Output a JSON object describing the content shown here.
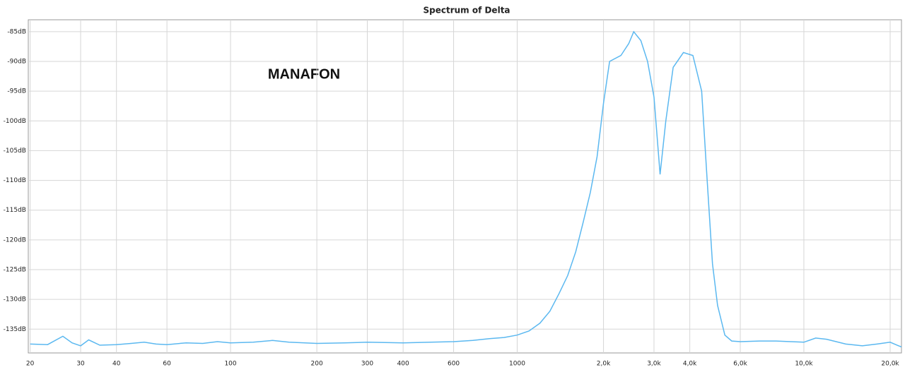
{
  "chart_data": {
    "type": "line",
    "title": "Spectrum of Delta",
    "annotation": "MANAFON",
    "log_x": true,
    "grid": true,
    "xlim": [
      19.7,
      21900
    ],
    "ylim": [
      -139,
      -83
    ],
    "xticks": [
      20,
      30,
      40,
      60,
      100,
      200,
      300,
      400,
      600,
      1000,
      {
        "value": 2000,
        "label": "2,0k"
      },
      {
        "value": 3000,
        "label": "3,0k"
      },
      {
        "value": 4000,
        "label": "4,0k"
      },
      {
        "value": 6000,
        "label": "6,0k"
      },
      {
        "value": 10000,
        "label": "10,0k"
      },
      {
        "value": 20000,
        "label": "20,0k"
      }
    ],
    "yticks": [
      {
        "value": -85,
        "label": "-85dB"
      },
      {
        "value": -90,
        "label": "-90dB"
      },
      {
        "value": -95,
        "label": "-95dB"
      },
      {
        "value": -100,
        "label": "-100dB"
      },
      {
        "value": -105,
        "label": "-105dB"
      },
      {
        "value": -110,
        "label": "-110dB"
      },
      {
        "value": -115,
        "label": "-115dB"
      },
      {
        "value": -120,
        "label": "-120dB"
      },
      {
        "value": -125,
        "label": "-125dB"
      },
      {
        "value": -130,
        "label": "-130dB"
      },
      {
        "value": -135,
        "label": "-135dB"
      }
    ],
    "x": [
      20,
      23,
      26,
      28,
      30,
      32,
      35,
      40,
      45,
      50,
      55,
      60,
      70,
      80,
      90,
      100,
      120,
      140,
      160,
      200,
      250,
      300,
      400,
      500,
      600,
      700,
      800,
      900,
      1000,
      1100,
      1200,
      1300,
      1400,
      1500,
      1600,
      1700,
      1800,
      1900,
      2000,
      2100,
      2300,
      2450,
      2550,
      2700,
      2850,
      3000,
      3150,
      3300,
      3500,
      3800,
      4100,
      4400,
      4600,
      4800,
      5000,
      5300,
      5600,
      6000,
      7000,
      8000,
      9000,
      10000,
      11000,
      12000,
      14000,
      16000,
      18000,
      20000,
      21900
    ],
    "series": [
      {
        "color": "#5bb8f0",
        "values": [
          -137.5,
          -137.6,
          -136.2,
          -137.3,
          -137.8,
          -136.8,
          -137.7,
          -137.6,
          -137.4,
          -137.2,
          -137.5,
          -137.6,
          -137.3,
          -137.4,
          -137.1,
          -137.3,
          -137.2,
          -136.9,
          -137.2,
          -137.4,
          -137.3,
          -137.2,
          -137.3,
          -137.2,
          -137.1,
          -136.9,
          -136.6,
          -136.4,
          -136.0,
          -135.3,
          -134.0,
          -132.0,
          -129.0,
          -126.0,
          -122.0,
          -117.0,
          -112.0,
          -106.0,
          -97.0,
          -90.0,
          -89.0,
          -87.0,
          -85.0,
          -86.5,
          -90.0,
          -96.0,
          -109.0,
          -100.0,
          -91.0,
          -88.5,
          -89.0,
          -95.0,
          -110.0,
          -124.0,
          -131.0,
          -136.0,
          -137.0,
          -137.1,
          -137.0,
          -137.0,
          -137.1,
          -137.2,
          -136.5,
          -136.7,
          -137.5,
          -137.8,
          -137.5,
          -137.2,
          -138.0
        ]
      }
    ]
  }
}
